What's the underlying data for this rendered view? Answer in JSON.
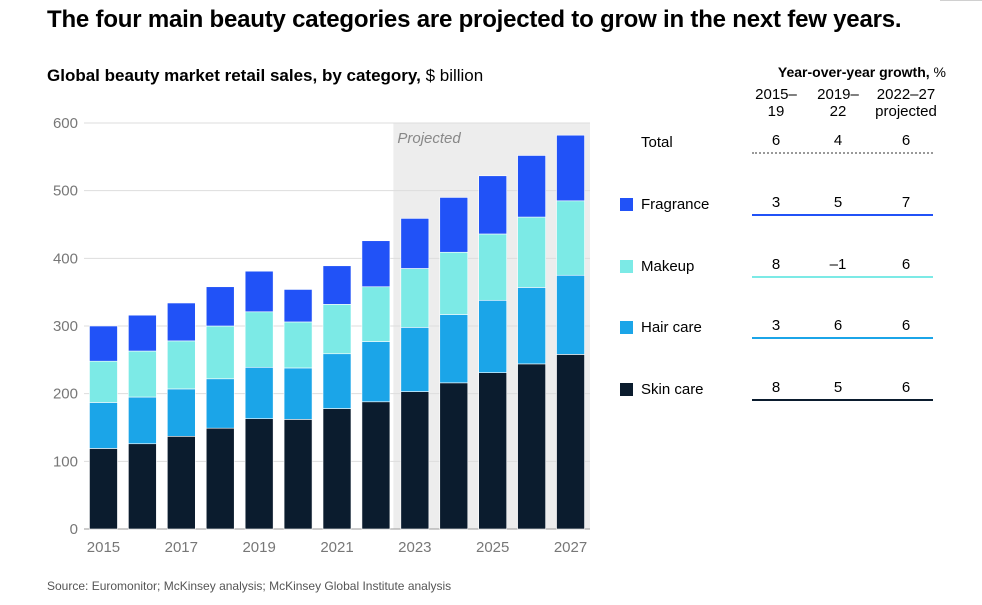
{
  "headline": "The four main beauty categories are projected to grow in the next few years.",
  "chart_title_bold": "Global beauty market retail sales, by category,",
  "chart_title_unit": " $ billion",
  "source": "Source: Euromonitor; McKinsey analysis; McKinsey Global Institute analysis",
  "chart_data": {
    "type": "bar",
    "stacked": true,
    "x": [
      2015,
      2016,
      2017,
      2018,
      2019,
      2020,
      2021,
      2022,
      2023,
      2024,
      2025,
      2026,
      2027
    ],
    "x_tick_labels": [
      "2015",
      "2017",
      "2019",
      "2021",
      "2023",
      "2025",
      "2027"
    ],
    "ylim": [
      0,
      600
    ],
    "y_ticks": [
      0,
      100,
      200,
      300,
      400,
      500,
      600
    ],
    "grid": true,
    "projected_label": "Projected",
    "projected_from": 2023,
    "series": [
      {
        "name": "Skin care",
        "color": "#0b1c2e",
        "values": [
          119,
          126,
          137,
          149,
          163,
          162,
          178,
          188,
          203,
          216,
          231,
          244,
          258
        ]
      },
      {
        "name": "Hair care",
        "color": "#1ba5e8",
        "values": [
          68,
          69,
          70,
          73,
          76,
          76,
          81,
          89,
          95,
          101,
          107,
          113,
          117
        ]
      },
      {
        "name": "Makeup",
        "color": "#7ceae6",
        "values": [
          61,
          68,
          71,
          78,
          82,
          68,
          73,
          81,
          87,
          92,
          98,
          104,
          110
        ]
      },
      {
        "name": "Fragrance",
        "color": "#2152f7",
        "values": [
          52,
          53,
          56,
          58,
          60,
          48,
          57,
          68,
          74,
          81,
          86,
          91,
          97
        ]
      }
    ]
  },
  "growth": {
    "title_bold": "Year-over-year growth,",
    "title_unit": " %",
    "columns": [
      {
        "line1": "2015–",
        "line2": "19"
      },
      {
        "line1": "2019–",
        "line2": "22"
      },
      {
        "line1": "2022–27",
        "line2": "projected"
      }
    ],
    "rows": [
      {
        "label": "Total",
        "color": "",
        "values": [
          "6",
          "4",
          "6"
        ]
      },
      {
        "label": "Fragrance",
        "color": "#2152f7",
        "values": [
          "3",
          "5",
          "7"
        ]
      },
      {
        "label": "Makeup",
        "color": "#7ceae6",
        "values": [
          "8",
          "–1",
          "6"
        ]
      },
      {
        "label": "Hair care",
        "color": "#1ba5e8",
        "values": [
          "3",
          "6",
          "6"
        ]
      },
      {
        "label": "Skin care",
        "color": "#0b1c2e",
        "values": [
          "8",
          "5",
          "6"
        ]
      }
    ]
  }
}
